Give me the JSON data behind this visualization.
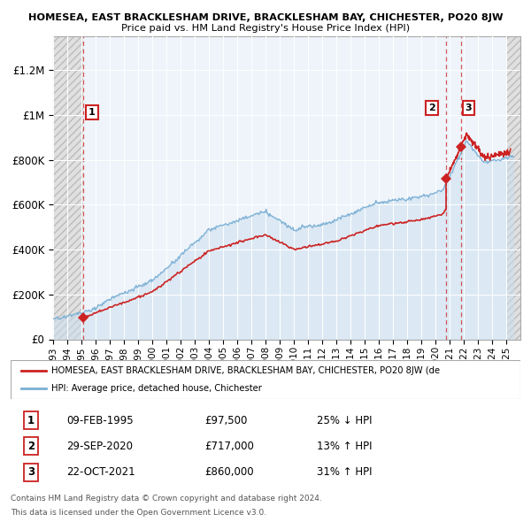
{
  "title_line1": "HOMESEA, EAST BRACKLESHAM DRIVE, BRACKLESHAM BAY, CHICHESTER, PO20 8JW",
  "title_line2": "Price paid vs. HM Land Registry's House Price Index (HPI)",
  "hpi_color": "#7aafd4",
  "price_color": "#cc2222",
  "transactions": [
    {
      "date_num": 1995.12,
      "price": 97500,
      "label": "1",
      "date_str": "09-FEB-1995",
      "price_str": "£97,500",
      "pct_str": "25% ↓ HPI"
    },
    {
      "date_num": 2020.75,
      "price": 717000,
      "label": "2",
      "date_str": "29-SEP-2020",
      "price_str": "£717,000",
      "pct_str": "13% ↑ HPI"
    },
    {
      "date_num": 2021.8,
      "price": 860000,
      "label": "3",
      "date_str": "22-OCT-2021",
      "price_str": "£860,000",
      "pct_str": "31% ↑ HPI"
    }
  ],
  "ylabel_ticks": [
    "£0",
    "£200K",
    "£400K",
    "£600K",
    "£800K",
    "£1M",
    "£1.2M"
  ],
  "ytick_vals": [
    0,
    200000,
    400000,
    600000,
    800000,
    1000000,
    1200000
  ],
  "ylim": [
    0,
    1350000
  ],
  "xlim": [
    1993,
    2026
  ],
  "xticks": [
    1993,
    1994,
    1995,
    1996,
    1997,
    1998,
    1999,
    2000,
    2001,
    2002,
    2003,
    2004,
    2005,
    2006,
    2007,
    2008,
    2009,
    2010,
    2011,
    2012,
    2013,
    2014,
    2015,
    2016,
    2017,
    2018,
    2019,
    2020,
    2021,
    2022,
    2023,
    2024,
    2025
  ],
  "legend_label_red": "HOMESEA, EAST BRACKLESHAM DRIVE, BRACKLESHAM BAY, CHICHESTER, PO20 8JW (de",
  "legend_label_blue": "HPI: Average price, detached house, Chichester",
  "footnote1": "Contains HM Land Registry data © Crown copyright and database right 2024.",
  "footnote2": "This data is licensed under the Open Government Licence v3.0.",
  "hatch_color": "#d8d8d8",
  "fill_color": "#ccdff0",
  "bg_color": "#eef4fa"
}
